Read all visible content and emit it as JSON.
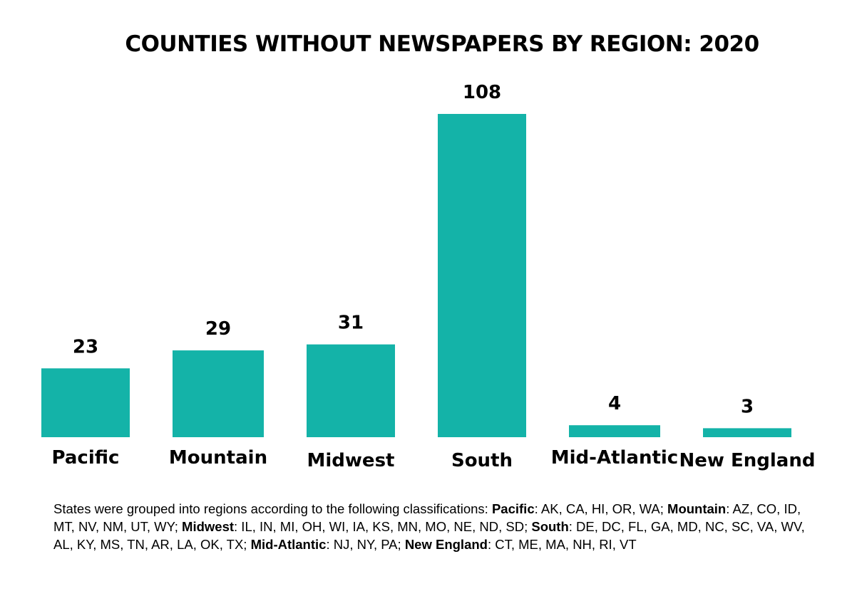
{
  "chart_data": {
    "type": "bar",
    "title": "COUNTIES WITHOUT NEWSPAPERS  BY REGION:  2020",
    "categories": [
      "Pacific",
      "Mountain",
      "Midwest",
      "South",
      "Mid-Atlantic",
      "New England"
    ],
    "values": [
      23,
      29,
      31,
      108,
      4,
      3
    ],
    "data_labels": [
      "23",
      "29",
      "31",
      "108",
      "4",
      "3"
    ],
    "xlabel": "",
    "ylabel": "",
    "ylim": [
      0,
      108
    ],
    "grid": false,
    "legend": "none",
    "bar_color": "#14B3A8"
  },
  "footnote": {
    "intro": "States were grouped into regions according to the following classifications:  ",
    "groups": [
      {
        "region": "Pacific",
        "states": ": AK, CA, HI, OR, WA; "
      },
      {
        "region": "Mountain",
        "states": ": AZ, CO, ID, MT, NV, NM, UT, WY;  "
      },
      {
        "region": "Midwest",
        "states": ": IL, IN, MI, OH, WI, IA, KS, MN, MO, NE, ND, SD; "
      },
      {
        "region": "South",
        "states": ": DE, DC, FL, GA, MD, NC, SC, VA, WV, AL, KY, MS, TN, AR, LA, OK, TX; "
      },
      {
        "region": "Mid-Atlantic",
        "states": ": NJ, NY, PA; "
      },
      {
        "region": "New England",
        "states": ": CT, ME, MA, NH, RI, VT"
      }
    ]
  }
}
